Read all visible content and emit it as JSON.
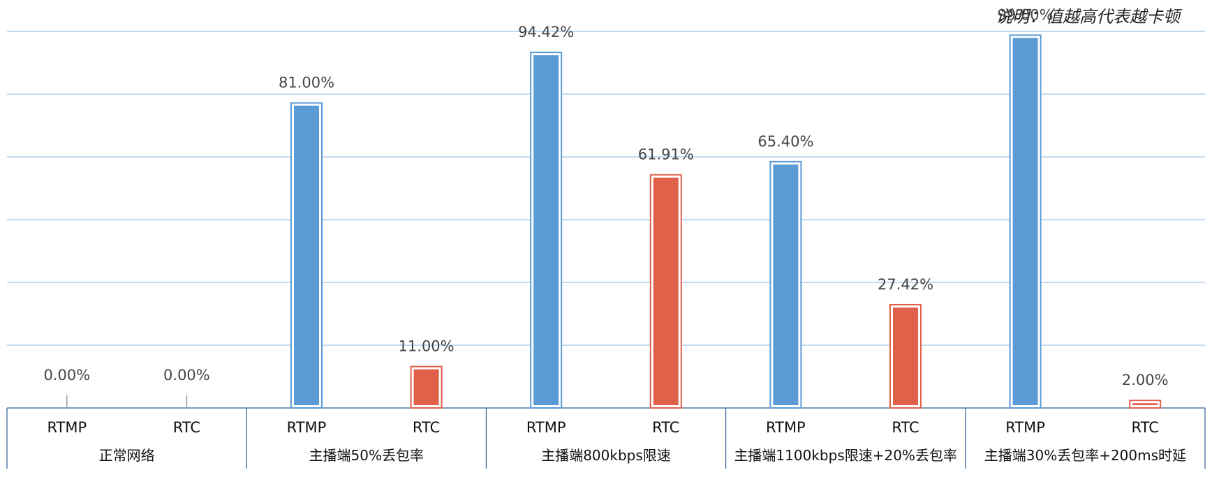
{
  "chart_data": {
    "type": "bar",
    "note": "说明：值越高代表越卡顿",
    "groups": [
      "正常网络",
      "主播端50%丢包率",
      "主播端800kbps限速",
      "主播端1100kbps限速+20%丢包率",
      "主播端30%丢包率+200ms时延"
    ],
    "sub_categories": [
      "RTMP",
      "RTC"
    ],
    "series": [
      {
        "color": "#5b9bd5",
        "values": [
          0.0,
          81.0,
          94.42,
          65.4,
          99.0
        ],
        "labels": [
          "0.00%",
          "81.00%",
          "94.42%",
          "65.40%",
          "99.00%"
        ]
      },
      {
        "color": "#e0604a",
        "values": [
          0.0,
          11.0,
          61.91,
          27.42,
          2.0
        ],
        "labels": [
          "0.00%",
          "11.00%",
          "61.91%",
          "27.42%",
          "2.00%"
        ]
      }
    ],
    "ylim": [
      0,
      100
    ],
    "grid": true,
    "xlabel": "",
    "ylabel": ""
  }
}
